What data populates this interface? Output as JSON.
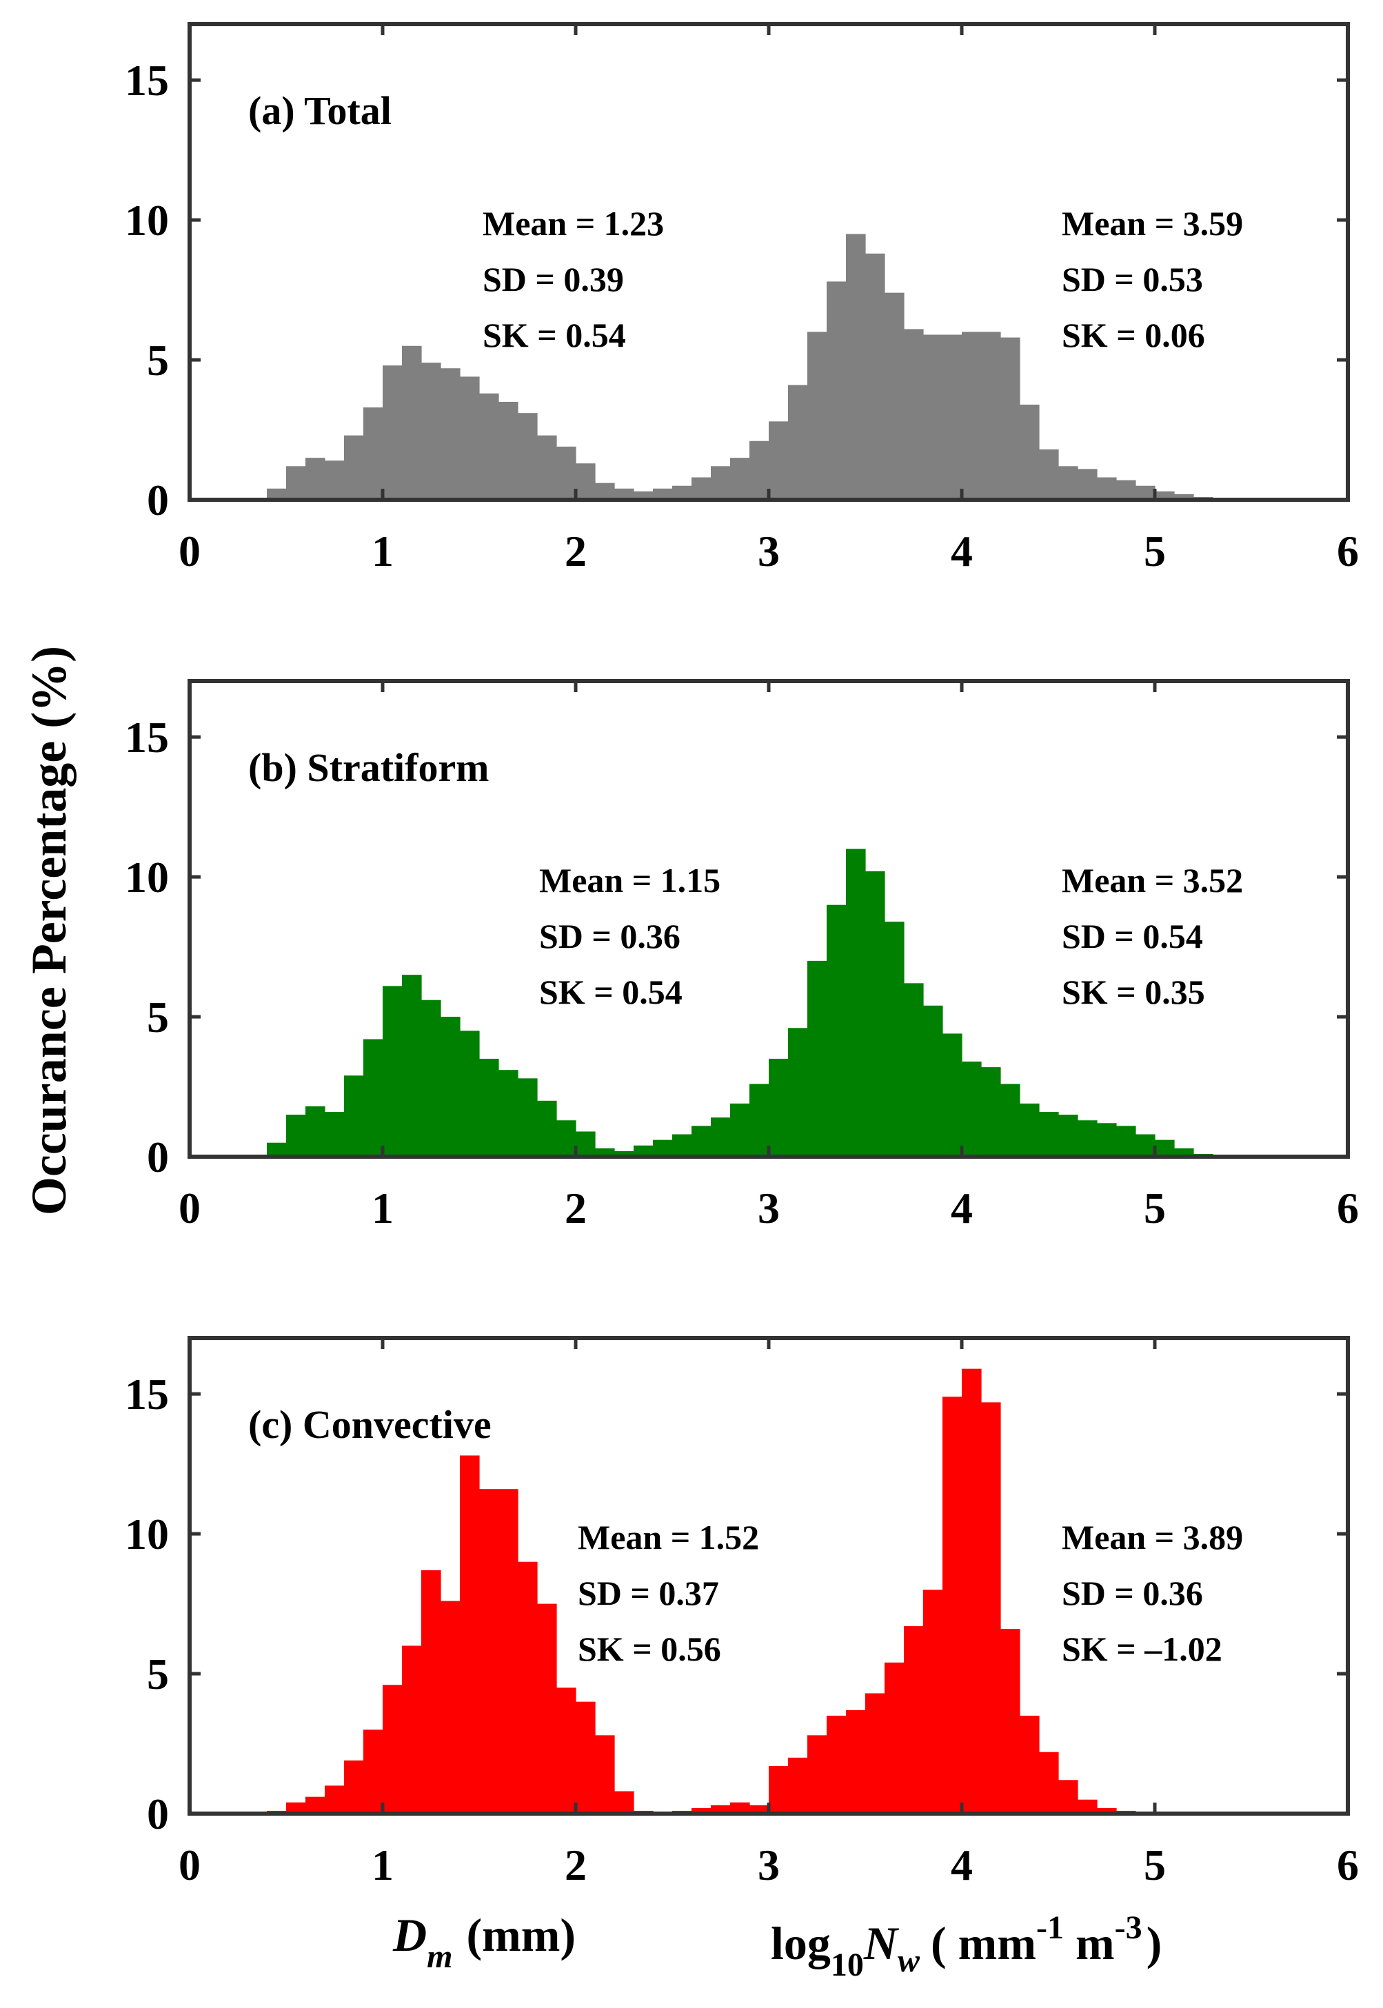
{
  "figure": {
    "ylabel": "Occurance Percentage (%)",
    "xlabel_left": {
      "main": "D",
      "sub": "m",
      "unit": "(mm)"
    },
    "xlabel_right": {
      "pre": "log",
      "sub": "10",
      "main": "N",
      "main_sub": "w",
      "unit_open": "( mm",
      "sup1": "-1",
      "mid": " m",
      "sup2": "-3",
      "unit_close": ")"
    }
  },
  "chart_data": [
    {
      "type": "bar",
      "panel": "a",
      "title": "(a) Total",
      "color": "#808080",
      "xlim": [
        0,
        6
      ],
      "ylim": [
        0,
        17
      ],
      "xticks": [
        "0",
        "1",
        "2",
        "3",
        "4",
        "5",
        "6"
      ],
      "yticks": [
        "0",
        "5",
        "10",
        "15"
      ],
      "bin_width": 0.1,
      "dm": {
        "x": [
          0.4,
          0.5,
          0.6,
          0.7,
          0.8,
          0.9,
          1.0,
          1.1,
          1.2,
          1.3,
          1.4,
          1.5,
          1.6,
          1.7,
          1.8,
          1.9,
          2.0,
          2.1,
          2.2
        ],
        "values": [
          0.4,
          1.2,
          1.5,
          1.4,
          2.3,
          3.3,
          4.8,
          5.5,
          4.9,
          4.7,
          4.4,
          3.8,
          3.5,
          3.1,
          2.3,
          1.9,
          1.3,
          0.6,
          0.4
        ],
        "stats": {
          "mean": "Mean = 1.23",
          "sd": "SD = 0.39",
          "sk": "SK = 0.54"
        }
      },
      "nw": {
        "x": [
          2.2,
          2.3,
          2.4,
          2.5,
          2.6,
          2.7,
          2.8,
          2.9,
          3.0,
          3.1,
          3.2,
          3.3,
          3.4,
          3.5,
          3.6,
          3.7,
          3.8,
          3.9,
          4.0,
          4.1,
          4.2,
          4.3,
          4.4,
          4.5,
          4.6,
          4.7,
          4.8,
          4.9,
          5.0,
          5.1,
          5.2,
          5.3,
          5.4
        ],
        "values": [
          0.2,
          0.3,
          0.4,
          0.5,
          0.8,
          1.2,
          1.5,
          2.1,
          2.8,
          4.1,
          6.0,
          7.8,
          9.5,
          8.8,
          7.4,
          6.1,
          5.9,
          5.9,
          6.0,
          6.0,
          5.8,
          3.4,
          1.8,
          1.2,
          1.1,
          0.8,
          0.7,
          0.5,
          0.3,
          0.2,
          0.1,
          0.05,
          0.05
        ],
        "stats": {
          "mean": "Mean = 3.59",
          "sd": "SD = 0.53",
          "sk": "SK = 0.06"
        }
      }
    },
    {
      "type": "bar",
      "panel": "b",
      "title": "(b) Stratiform",
      "color": "#008000",
      "xlim": [
        0,
        6
      ],
      "ylim": [
        0,
        17
      ],
      "xticks": [
        "0",
        "1",
        "2",
        "3",
        "4",
        "5",
        "6"
      ],
      "yticks": [
        "0",
        "5",
        "10",
        "15"
      ],
      "bin_width": 0.1,
      "dm": {
        "x": [
          0.4,
          0.5,
          0.6,
          0.7,
          0.8,
          0.9,
          1.0,
          1.1,
          1.2,
          1.3,
          1.4,
          1.5,
          1.6,
          1.7,
          1.8,
          1.9,
          2.0,
          2.1,
          2.2
        ],
        "values": [
          0.5,
          1.5,
          1.8,
          1.6,
          2.9,
          4.2,
          6.1,
          6.5,
          5.6,
          5.0,
          4.5,
          3.5,
          3.1,
          2.8,
          2.0,
          1.3,
          0.9,
          0.3,
          0.1
        ],
        "stats": {
          "mean": "Mean = 1.15",
          "sd": "SD = 0.36",
          "sk": "SK = 0.54"
        }
      },
      "nw": {
        "x": [
          2.2,
          2.3,
          2.4,
          2.5,
          2.6,
          2.7,
          2.8,
          2.9,
          3.0,
          3.1,
          3.2,
          3.3,
          3.4,
          3.5,
          3.6,
          3.7,
          3.8,
          3.9,
          4.0,
          4.1,
          4.2,
          4.3,
          4.4,
          4.5,
          4.6,
          4.7,
          4.8,
          4.9,
          5.0,
          5.1,
          5.2,
          5.3,
          5.4
        ],
        "values": [
          0.2,
          0.4,
          0.6,
          0.8,
          1.1,
          1.4,
          1.9,
          2.6,
          3.5,
          4.6,
          7.0,
          9.0,
          11.0,
          10.2,
          8.4,
          6.2,
          5.4,
          4.4,
          3.4,
          3.2,
          2.6,
          1.9,
          1.6,
          1.5,
          1.3,
          1.2,
          1.1,
          0.8,
          0.6,
          0.3,
          0.1,
          0.05,
          0.05
        ],
        "stats": {
          "mean": "Mean = 3.52",
          "sd": "SD = 0.54",
          "sk": "SK = 0.35"
        }
      }
    },
    {
      "type": "bar",
      "panel": "c",
      "title": "(c) Convective",
      "color": "#ff0000",
      "xlim": [
        0,
        6
      ],
      "ylim": [
        0,
        17
      ],
      "xticks": [
        "0",
        "1",
        "2",
        "3",
        "4",
        "5",
        "6"
      ],
      "yticks": [
        "0",
        "5",
        "10",
        "15"
      ],
      "bin_width": 0.1,
      "dm": {
        "x": [
          0.4,
          0.5,
          0.6,
          0.7,
          0.8,
          0.9,
          1.0,
          1.1,
          1.2,
          1.3,
          1.4,
          1.5,
          1.6,
          1.7,
          1.8,
          1.9,
          2.0,
          2.1,
          2.2,
          2.3,
          2.4
        ],
        "values": [
          0.1,
          0.4,
          0.6,
          1.0,
          1.9,
          3.0,
          4.6,
          6.0,
          8.7,
          7.6,
          12.8,
          11.6,
          11.6,
          9.0,
          7.5,
          4.5,
          4.0,
          2.8,
          0.8,
          0.1,
          0.05
        ],
        "stats": {
          "mean": "Mean = 1.52",
          "sd": "SD = 0.37",
          "sk": "SK = 0.56"
        }
      },
      "nw": {
        "x": [
          2.5,
          2.6,
          2.7,
          2.8,
          2.9,
          3.0,
          3.1,
          3.2,
          3.3,
          3.4,
          3.5,
          3.6,
          3.7,
          3.8,
          3.9,
          4.0,
          4.1,
          4.2,
          4.3,
          4.4,
          4.5,
          4.6,
          4.7,
          4.8,
          4.9,
          5.0
        ],
        "values": [
          0.1,
          0.2,
          0.3,
          0.4,
          0.3,
          1.7,
          2.0,
          2.8,
          3.5,
          3.7,
          4.3,
          5.4,
          6.7,
          8.0,
          14.9,
          15.9,
          14.7,
          6.6,
          3.5,
          2.2,
          1.2,
          0.5,
          0.2,
          0.1,
          0.05,
          0.05
        ],
        "stats": {
          "mean": "Mean = 3.89",
          "sd": "SD = 0.36",
          "sk": "SK = –1.02"
        }
      }
    }
  ]
}
